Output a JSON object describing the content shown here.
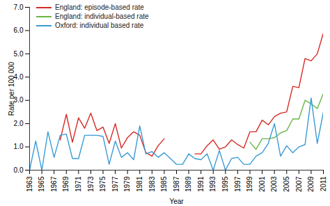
{
  "chart_data": {
    "type": "line",
    "x_label": "Year",
    "y_label": "Rate per 100 000",
    "x": [
      1963,
      1964,
      1965,
      1966,
      1967,
      1968,
      1969,
      1970,
      1971,
      1972,
      1973,
      1974,
      1975,
      1976,
      1977,
      1978,
      1979,
      1980,
      1981,
      1982,
      1983,
      1984,
      1985,
      1986,
      1987,
      1988,
      1989,
      1990,
      1991,
      1992,
      1993,
      1994,
      1995,
      1996,
      1997,
      1998,
      1999,
      2000,
      2001,
      2002,
      2003,
      2004,
      2005,
      2006,
      2007,
      2008,
      2009,
      2010,
      2011
    ],
    "series": [
      {
        "name": "England: episode-based rate",
        "color": "#d62a24",
        "values": [
          null,
          null,
          null,
          null,
          null,
          1.3,
          2.4,
          1.2,
          2.25,
          1.8,
          2.45,
          1.7,
          1.85,
          1.15,
          2.0,
          0.95,
          1.4,
          1.65,
          1.5,
          0.75,
          0.6,
          1.05,
          1.35,
          null,
          null,
          null,
          null,
          0.7,
          0.7,
          1.05,
          1.3,
          0.9,
          1.0,
          1.3,
          1.1,
          0.95,
          1.65,
          1.65,
          2.15,
          1.95,
          2.3,
          2.45,
          2.5,
          3.6,
          3.55,
          4.8,
          4.7,
          5.0,
          5.9
        ]
      },
      {
        "name": "England: individual-based rate",
        "color": "#6ab544",
        "values": [
          null,
          null,
          null,
          null,
          null,
          null,
          null,
          null,
          null,
          null,
          null,
          null,
          null,
          null,
          null,
          null,
          null,
          null,
          null,
          null,
          null,
          null,
          null,
          null,
          null,
          null,
          null,
          null,
          null,
          null,
          null,
          null,
          null,
          null,
          null,
          null,
          1.2,
          0.9,
          1.35,
          1.35,
          1.4,
          1.6,
          1.7,
          2.2,
          2.2,
          3.0,
          2.85,
          2.65,
          3.3
        ]
      },
      {
        "name": "Oxford: individual based rate",
        "color": "#3a9bd5",
        "values": [
          0,
          1.25,
          0,
          1.65,
          0.55,
          1.5,
          1.55,
          0.5,
          0.5,
          1.5,
          1.5,
          1.5,
          1.45,
          0.25,
          1.25,
          0.55,
          0.75,
          0.45,
          1.9,
          0.7,
          0.8,
          0.55,
          0.75,
          0.5,
          0.25,
          0.25,
          0.7,
          0.5,
          0.45,
          0.7,
          0,
          0.85,
          0,
          0.5,
          0.55,
          0.25,
          0.25,
          0.6,
          0.75,
          1.15,
          2.0,
          0.6,
          1.05,
          0.75,
          1.0,
          1.1,
          3.1,
          1.15,
          2.5
        ]
      }
    ],
    "xlim": [
      1963,
      2011
    ],
    "xticks": [
      1963,
      1965,
      1967,
      1969,
      1971,
      1973,
      1975,
      1977,
      1979,
      1981,
      1983,
      1985,
      1987,
      1989,
      1991,
      1993,
      1995,
      1997,
      1999,
      2001,
      2003,
      2005,
      2007,
      2009,
      2011
    ],
    "ylim": [
      0,
      7
    ],
    "yticks": [
      0,
      1,
      2,
      3,
      4,
      5,
      6,
      7
    ],
    "grid": false,
    "legend": "top-left"
  }
}
